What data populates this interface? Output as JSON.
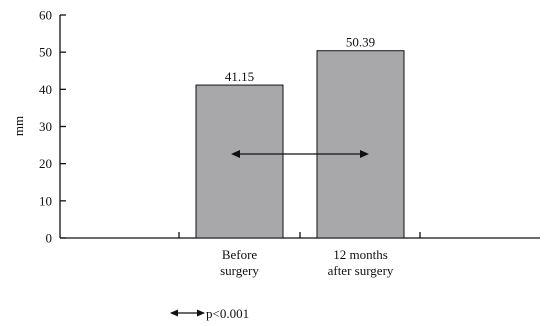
{
  "chart_data": {
    "type": "bar",
    "categories": [
      [
        "Before",
        "surgery"
      ],
      [
        "12 months",
        "after surgery"
      ]
    ],
    "values": [
      41.15,
      50.39
    ],
    "data_labels": [
      "41.15",
      "50.39"
    ],
    "ylabel": "mm",
    "ylim": [
      0,
      60
    ],
    "yticks": [
      0,
      10,
      20,
      30,
      40,
      50,
      60
    ],
    "bar_color": "#a8a8aa",
    "legend": {
      "label": "p<0.001",
      "symbol": "double-arrow"
    }
  }
}
